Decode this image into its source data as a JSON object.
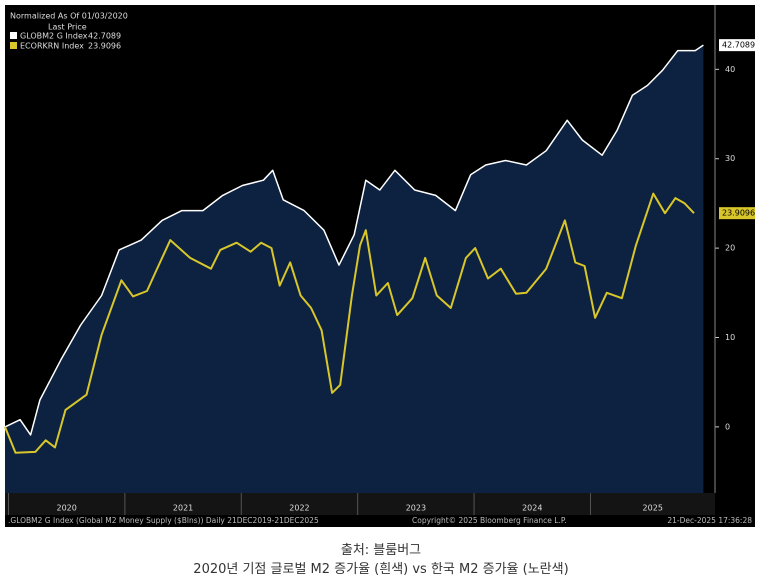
{
  "chart_data": {
    "type": "line",
    "annotations": [
      "Normalized As Of 01/03/2020",
      "Last Price"
    ],
    "footer": [
      ".GLOBM2 G Index (Global M2 Money Supply ($Blns)) Daily 21DEC2019-21DEC2025",
      "Copyright© 2025 Bloomberg Finance L.P.",
      "21-Dec-2025 17:36:28"
    ],
    "caption": [
      "출처: 블룸버그",
      "2020년 기점 글로벌 M2 증가율 (흰색) vs 한국 M2 증가율 (노란색)"
    ],
    "xlim": [
      2019.97,
      2026.07
    ],
    "xticks": [
      2020,
      2021,
      2022,
      2023,
      2024,
      2025
    ],
    "ylim": [
      -7.4,
      47.2
    ],
    "yticks": [
      0,
      10,
      20,
      30,
      40
    ],
    "series": [
      {
        "name": "GLOBM2 G Index",
        "color": "#ffffff",
        "fill": "#0c2240",
        "x": [
          2019.97,
          2020.1,
          2020.19,
          2020.27,
          2020.45,
          2020.62,
          2020.8,
          2020.95,
          2021.14,
          2021.32,
          2021.49,
          2021.67,
          2021.84,
          2022.01,
          2022.19,
          2022.27,
          2022.36,
          2022.54,
          2022.71,
          2022.84,
          2022.97,
          2023.07,
          2023.19,
          2023.32,
          2023.49,
          2023.67,
          2023.84,
          2023.97,
          2024.1,
          2024.27,
          2024.45,
          2024.62,
          2024.8,
          2024.93,
          2025.1,
          2025.23,
          2025.36,
          2025.49,
          2025.62,
          2025.75,
          2025.9,
          2025.97
        ],
        "values": [
          0,
          0.8,
          -0.9,
          3,
          7.5,
          11.4,
          14.7,
          19.8,
          20.9,
          23.1,
          24.2,
          24.2,
          25.9,
          27,
          27.6,
          28.7,
          25.4,
          24.2,
          22,
          18.1,
          21.5,
          27.6,
          26.5,
          28.7,
          26.5,
          25.9,
          24.2,
          28.2,
          29.3,
          29.8,
          29.3,
          30.9,
          34.3,
          32.1,
          30.4,
          33.2,
          37.1,
          38.2,
          39.9,
          42.1,
          42.1,
          42.7089
        ]
      },
      {
        "name": "ECORKRN Index",
        "color": "#d8c62a",
        "x": [
          2019.97,
          2020.06,
          2020.23,
          2020.32,
          2020.4,
          2020.49,
          2020.67,
          2020.8,
          2020.97,
          2021.07,
          2021.19,
          2021.27,
          2021.39,
          2021.56,
          2021.74,
          2021.82,
          2021.96,
          2022.08,
          2022.17,
          2022.26,
          2022.33,
          2022.42,
          2022.51,
          2022.6,
          2022.69,
          2022.78,
          2022.85,
          2022.95,
          2023.02,
          2023.07,
          2023.16,
          2023.26,
          2023.34,
          2023.47,
          2023.58,
          2023.68,
          2023.8,
          2023.93,
          2024.01,
          2024.12,
          2024.23,
          2024.36,
          2024.45,
          2024.62,
          2024.78,
          2024.87,
          2024.95,
          2025.04,
          2025.14,
          2025.27,
          2025.39,
          2025.54,
          2025.64,
          2025.73,
          2025.81,
          2025.89
        ],
        "values": [
          0,
          -2.9,
          -2.8,
          -1.5,
          -2.3,
          1.9,
          3.6,
          10.3,
          16.4,
          14.6,
          15.2,
          17.5,
          20.9,
          18.9,
          17.7,
          19.8,
          20.6,
          19.6,
          20.6,
          20.0,
          15.8,
          18.4,
          14.7,
          13.3,
          10.8,
          3.8,
          4.7,
          14.7,
          20.3,
          22.0,
          14.7,
          16.1,
          12.5,
          14.4,
          18.9,
          14.7,
          13.3,
          18.9,
          20.0,
          16.6,
          17.7,
          14.9,
          15.0,
          17.7,
          23.1,
          18.4,
          18.0,
          12.2,
          15.0,
          14.4,
          20.3,
          26.1,
          23.9,
          25.6,
          25.0,
          23.9096
        ]
      }
    ]
  }
}
